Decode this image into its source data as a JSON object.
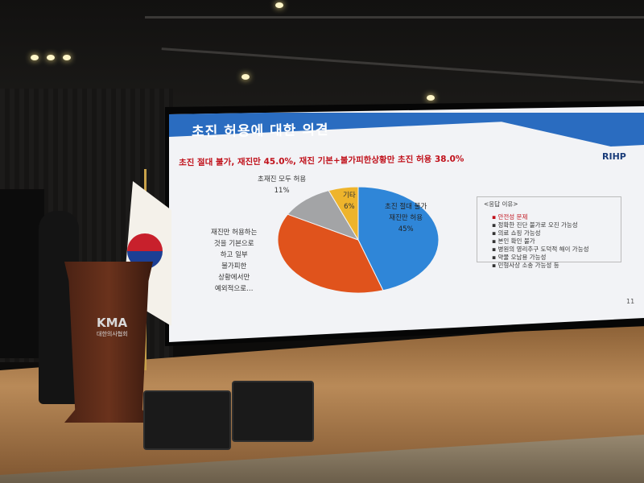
{
  "slide": {
    "title": "초진 허용에 대한 의견",
    "subtitle": "초진 절대 불가, 재진만 45.0%, 재진 기본+불가피한상황만 초진 허용 38.0%",
    "logo": "RIHP",
    "page_number": "11",
    "reasons": {
      "heading": "<응답 이유>",
      "items": [
        "안전성 문제",
        "정확한 진단 불가로 오진 가능성",
        "의료 쇼핑 가능성",
        "본인 확인 불가",
        "병원의 영리추구 도덕적 해이 가능성",
        "약물 오남용 가능성",
        "민형사상 소송 가능성 등"
      ]
    }
  },
  "chart_data": {
    "type": "pie",
    "slices": [
      {
        "label_lines": [
          "초진 절대 불가",
          "재진만 허용",
          "45%"
        ],
        "value": 45,
        "color": "#2f86d8"
      },
      {
        "label_lines": [
          "재진만 허용하는",
          "것을 기본으로",
          "하고 일부",
          "불가피한",
          "상황에서만",
          "예외적으로…"
        ],
        "value": 38,
        "color": "#e0531c"
      },
      {
        "label_lines": [
          "초재진 모두 허용",
          "11%"
        ],
        "value": 11,
        "color": "#a3a4a6"
      },
      {
        "label_lines": [
          "기타",
          "6%"
        ],
        "value": 6,
        "color": "#eeb42c"
      }
    ]
  },
  "podium": {
    "logo": "KMA",
    "org": "대한의사협회"
  }
}
